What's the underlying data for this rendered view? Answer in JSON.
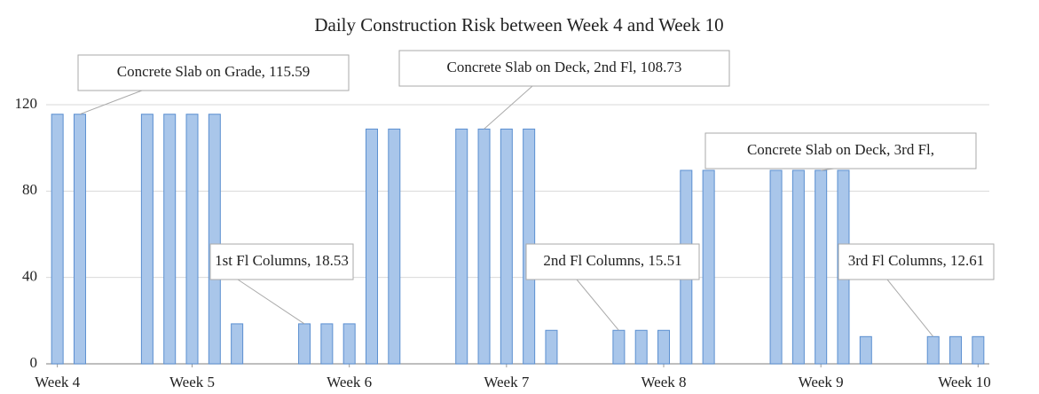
{
  "chart_data": {
    "type": "bar",
    "title": "Daily Construction Risk between Week 4 and Week 10",
    "x": [
      0,
      1,
      4,
      5,
      6,
      7,
      8,
      11,
      12,
      13,
      14,
      15,
      18,
      19,
      20,
      21,
      22,
      25,
      26,
      27,
      28,
      29,
      32,
      33,
      34,
      35,
      36,
      39,
      40,
      41
    ],
    "values": [
      115.59,
      115.59,
      115.59,
      115.59,
      115.59,
      115.59,
      18.53,
      18.53,
      18.53,
      18.53,
      108.73,
      108.73,
      108.73,
      108.73,
      108.73,
      108.73,
      15.51,
      15.51,
      15.51,
      15.51,
      89.6,
      89.6,
      89.6,
      89.6,
      89.6,
      89.6,
      12.61,
      12.61,
      12.61,
      12.61
    ],
    "color": "#a9c6ea",
    "xlim": [
      -0.5,
      41.5
    ],
    "xticks": [
      {
        "value": 0,
        "label": "Week 4"
      },
      {
        "value": 6,
        "label": "Week 5"
      },
      {
        "value": 13,
        "label": "Week 6"
      },
      {
        "value": 20,
        "label": "Week 7"
      },
      {
        "value": 27,
        "label": "Week 8"
      },
      {
        "value": 34,
        "label": "Week 9"
      },
      {
        "value": 41,
        "label": "Week 10"
      }
    ],
    "ylim": [
      0,
      120
    ],
    "yticks": [
      0,
      40,
      80,
      120
    ],
    "grid": true,
    "annotations": [
      "Concrete Slab on Grade, 115.59",
      "Concrete Slab on Deck, 2nd Fl, 108.73",
      "Concrete Slab on Deck, 3rd Fl,",
      "1st Fl Columns, 18.53",
      "2nd Fl Columns, 15.51",
      "3rd Fl Columns, 12.61"
    ]
  }
}
